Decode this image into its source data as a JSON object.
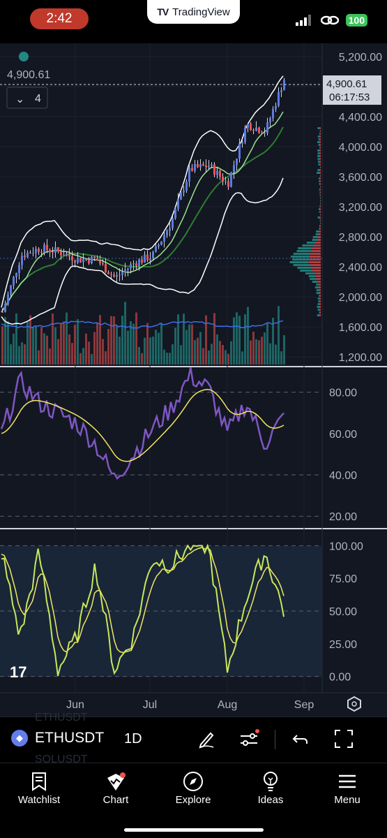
{
  "status_bar": {
    "time": "2:42",
    "app_tab": "TradingView",
    "battery": "100"
  },
  "chart": {
    "last_price": "4,900.61",
    "countdown": "06:17:53",
    "ohlc_price": "4,900.61",
    "indicator_count": "4",
    "price_axis": [
      "5,200.00",
      "4,800.00",
      "4,400.00",
      "4,000.00",
      "3,600.00",
      "3,200.00",
      "2,800.00",
      "2,400.00",
      "2,000.00",
      "1,600.00",
      "1,200.00"
    ],
    "rsi_axis": [
      "80.00",
      "60.00",
      "40.00",
      "20.00"
    ],
    "stoch_axis": [
      "100.00",
      "75.00",
      "50.00",
      "25.00",
      "0.00"
    ],
    "time_axis": [
      "Jun",
      "Jul",
      "Aug",
      "Sep"
    ],
    "logo": "17",
    "colors": {
      "background": "#131722",
      "up": "#5b7be0",
      "down": "#ef5350",
      "rsi": "#7e57c2",
      "signal": "#f5e663",
      "stoch_k": "#c8e85b"
    }
  },
  "chart_data": [
    {
      "type": "line",
      "name": "price",
      "x": [
        "May 11",
        "May 18",
        "May 25",
        "Jun 1",
        "Jun 8",
        "Jun 15",
        "Jun 22",
        "Jun 29",
        "Jul 6",
        "Jul 13",
        "Jul 20",
        "Jul 27",
        "Aug 3",
        "Aug 10",
        "Aug 17",
        "Aug 22"
      ],
      "y": [
        1800,
        2550,
        2650,
        2600,
        2500,
        2500,
        2250,
        2450,
        2550,
        3000,
        3700,
        3750,
        3500,
        4300,
        4200,
        4900
      ],
      "ylim": [
        1100,
        5300
      ]
    },
    {
      "type": "line",
      "name": "rsi",
      "x": [
        "May 11",
        "May 18",
        "May 25",
        "Jun 1",
        "Jun 8",
        "Jun 15",
        "Jun 22",
        "Jun 29",
        "Jul 6",
        "Jul 13",
        "Jul 20",
        "Jul 27",
        "Aug 3",
        "Aug 10",
        "Aug 17",
        "Aug 22"
      ],
      "y": [
        60,
        85,
        75,
        70,
        65,
        55,
        38,
        50,
        62,
        72,
        88,
        82,
        60,
        75,
        55,
        68
      ],
      "ylim": [
        15,
        90
      ]
    },
    {
      "type": "line",
      "name": "stochastic",
      "x": [
        "May 11",
        "May 18",
        "May 25",
        "Jun 1",
        "Jun 8",
        "Jun 15",
        "Jun 22",
        "Jun 29",
        "Jul 6",
        "Jul 13",
        "Jul 20",
        "Jul 27",
        "Aug 3",
        "Aug 10",
        "Aug 17",
        "Aug 22"
      ],
      "y": [
        95,
        30,
        95,
        5,
        30,
        85,
        5,
        30,
        90,
        85,
        100,
        100,
        5,
        60,
        95,
        50
      ],
      "ylim": [
        -5,
        105
      ]
    }
  ],
  "toolbar": {
    "symbol": "ETHUSDT",
    "ghost_top": "ETHUSDT",
    "ghost_bottom": "SOLUSDT",
    "interval": "1D"
  },
  "tabs": [
    {
      "label": "Watchlist",
      "icon": "bookmark-icon"
    },
    {
      "label": "Chart",
      "icon": "chart-icon"
    },
    {
      "label": "Explore",
      "icon": "compass-icon"
    },
    {
      "label": "Ideas",
      "icon": "lightbulb-icon"
    },
    {
      "label": "Menu",
      "icon": "menu-icon"
    }
  ]
}
